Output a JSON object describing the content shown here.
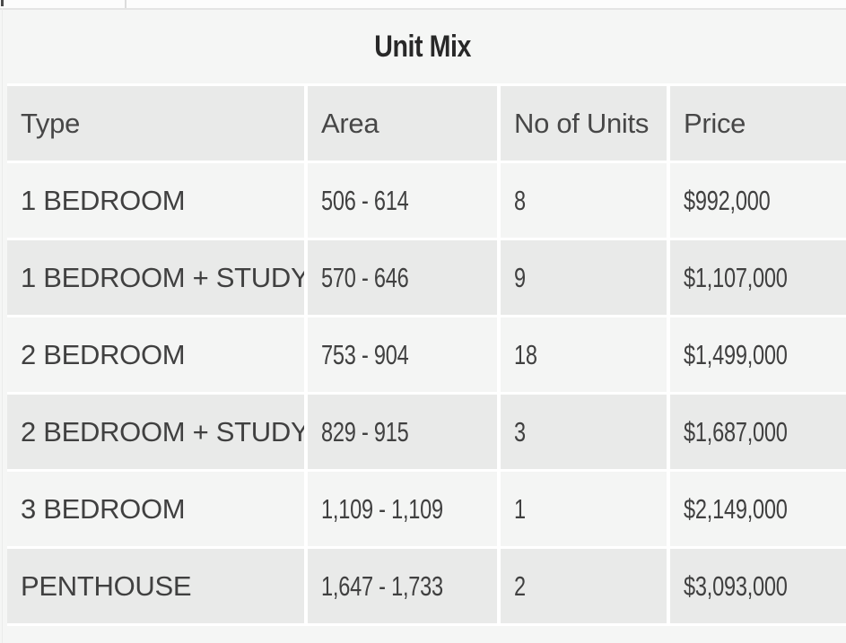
{
  "page": {
    "title": "Unit Mix"
  },
  "table": {
    "columns": [
      "Type",
      "Area",
      "No of Units",
      "Price"
    ],
    "rows": [
      {
        "type": "1 BEDROOM",
        "area": "506 - 614",
        "units": "8",
        "price": "$992,000"
      },
      {
        "type": "1 BEDROOM + STUDY",
        "area": "570 - 646",
        "units": "9",
        "price": "$1,107,000"
      },
      {
        "type": "2 BEDROOM",
        "area": "753 - 904",
        "units": "18",
        "price": "$1,499,000"
      },
      {
        "type": "2 BEDROOM + STUDY",
        "area": "829 - 915",
        "units": "3",
        "price": "$1,687,000"
      },
      {
        "type": "3 BEDROOM",
        "area": "1,109 - 1,109",
        "units": "1",
        "price": "$2,149,000"
      },
      {
        "type": "PENTHOUSE",
        "area": "1,647 - 1,733",
        "units": "2",
        "price": "$3,093,000"
      }
    ]
  },
  "colors": {
    "panel_background": "#f5f6f5",
    "row_light": "#f4f5f4",
    "row_dark": "#e9eae9",
    "cell_gutter": "#ffffff",
    "cell_text": "#404040",
    "header_text": "#474747",
    "title_text": "#282828"
  }
}
